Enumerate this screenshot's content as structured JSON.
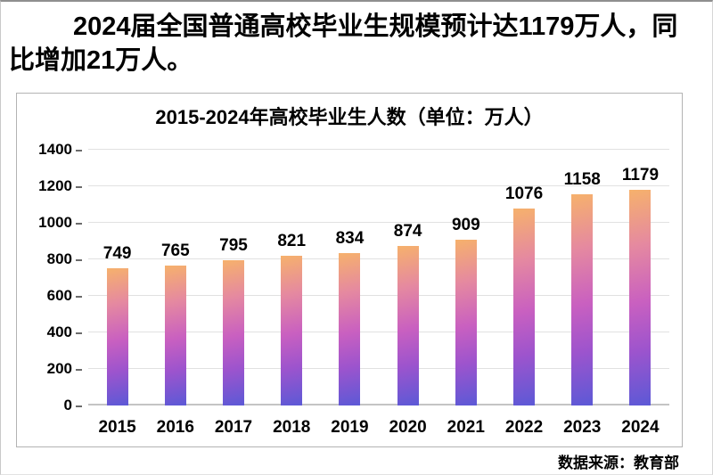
{
  "page": {
    "headline": "2024届全国普通高校毕业生规模预计达1179万人，同比增加21万人。",
    "source": "数据来源：教育部"
  },
  "chart_data": {
    "type": "bar",
    "title": "2015-2024年高校毕业生人数（单位：万人）",
    "categories": [
      "2015",
      "2016",
      "2017",
      "2018",
      "2019",
      "2020",
      "2021",
      "2022",
      "2023",
      "2024"
    ],
    "values": [
      749,
      765,
      795,
      821,
      834,
      874,
      909,
      1076,
      1158,
      1179
    ],
    "unit": "万人",
    "xlabel": "",
    "ylabel": "",
    "ylim": [
      0,
      1400
    ],
    "yticks": [
      0,
      200,
      400,
      600,
      800,
      1000,
      1200,
      1400
    ],
    "grid": true,
    "legend": false,
    "value_labels": true,
    "colors": {
      "bar_gradient_top": "#f6b16c",
      "bar_gradient_mid": "#c960c0",
      "bar_gradient_bottom": "#5c59d6",
      "gridline": "#e1e1e1",
      "baseline": "#c4c4c4",
      "text": "#000000"
    }
  }
}
